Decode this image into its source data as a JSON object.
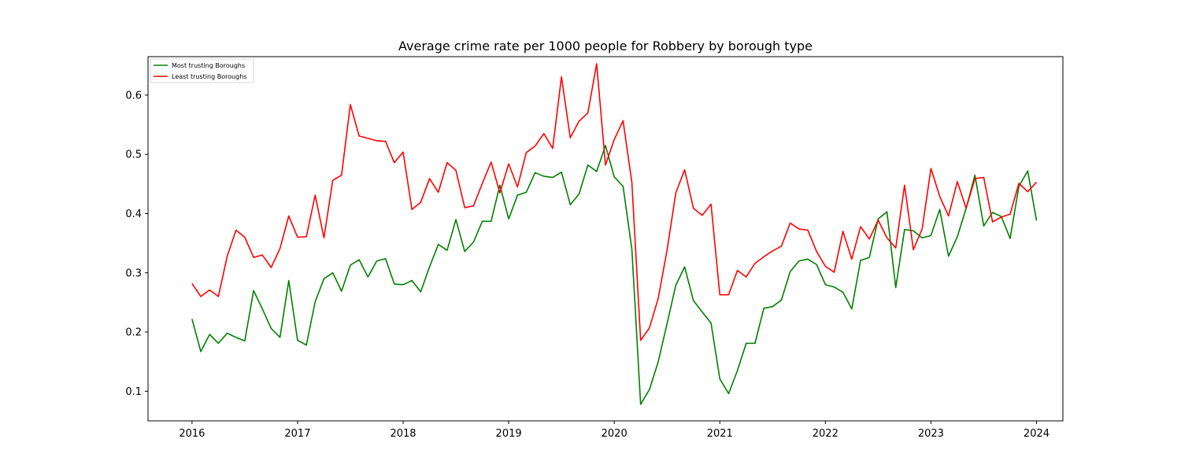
{
  "chart_data": {
    "type": "line",
    "title": "Average crime rate per 1000 people for Robbery by borough type",
    "xlabel": "",
    "ylabel": "",
    "x_ticks": [
      "2016",
      "2017",
      "2018",
      "2019",
      "2020",
      "2021",
      "2022",
      "2023",
      "2024"
    ],
    "y_ticks": [
      "0.1",
      "0.2",
      "0.3",
      "0.4",
      "0.5",
      "0.6"
    ],
    "xlim": [
      "2015-08",
      "2024-04"
    ],
    "ylim": [
      0.05,
      0.665
    ],
    "grid": false,
    "legend_position": "top-left",
    "start_month": "2016-01",
    "series": [
      {
        "name": "Most trusting Boroughs",
        "color": "#008000",
        "values": [
          0.222,
          0.167,
          0.196,
          0.181,
          0.198,
          0.191,
          0.185,
          0.27,
          0.239,
          0.206,
          0.191,
          0.287,
          0.186,
          0.178,
          0.251,
          0.29,
          0.3,
          0.269,
          0.313,
          0.322,
          0.293,
          0.32,
          0.324,
          0.281,
          0.28,
          0.287,
          0.268,
          0.31,
          0.348,
          0.338,
          0.39,
          0.336,
          0.352,
          0.387,
          0.387,
          0.448,
          0.391,
          0.431,
          0.436,
          0.469,
          0.463,
          0.461,
          0.47,
          0.415,
          0.433,
          0.482,
          0.471,
          0.515,
          0.462,
          0.446,
          0.34,
          0.078,
          0.103,
          0.15,
          0.214,
          0.279,
          0.31,
          0.253,
          0.234,
          0.215,
          0.121,
          0.096,
          0.135,
          0.181,
          0.181,
          0.24,
          0.243,
          0.254,
          0.302,
          0.32,
          0.323,
          0.314,
          0.28,
          0.276,
          0.267,
          0.239,
          0.321,
          0.326,
          0.391,
          0.403,
          0.275,
          0.373,
          0.371,
          0.359,
          0.363,
          0.407,
          0.328,
          0.361,
          0.409,
          0.465,
          0.379,
          0.402,
          0.395,
          0.358,
          0.446,
          0.472,
          0.388
        ]
      },
      {
        "name": "Least trusting Boroughs",
        "color": "#ff0000",
        "values": [
          0.282,
          0.26,
          0.271,
          0.26,
          0.328,
          0.372,
          0.36,
          0.326,
          0.33,
          0.309,
          0.341,
          0.396,
          0.36,
          0.361,
          0.431,
          0.359,
          0.456,
          0.465,
          0.584,
          0.531,
          0.527,
          0.523,
          0.522,
          0.486,
          0.504,
          0.407,
          0.419,
          0.459,
          0.436,
          0.486,
          0.473,
          0.41,
          0.413,
          0.451,
          0.487,
          0.435,
          0.484,
          0.445,
          0.503,
          0.514,
          0.535,
          0.51,
          0.631,
          0.528,
          0.556,
          0.57,
          0.653,
          0.482,
          0.525,
          0.557,
          0.453,
          0.186,
          0.207,
          0.257,
          0.338,
          0.435,
          0.474,
          0.409,
          0.397,
          0.416,
          0.263,
          0.263,
          0.304,
          0.293,
          0.316,
          0.327,
          0.337,
          0.345,
          0.384,
          0.374,
          0.372,
          0.336,
          0.311,
          0.301,
          0.37,
          0.323,
          0.378,
          0.357,
          0.389,
          0.359,
          0.342,
          0.448,
          0.339,
          0.374,
          0.476,
          0.429,
          0.396,
          0.454,
          0.409,
          0.459,
          0.461,
          0.386,
          0.394,
          0.399,
          0.451,
          0.437,
          0.453
        ]
      }
    ]
  }
}
